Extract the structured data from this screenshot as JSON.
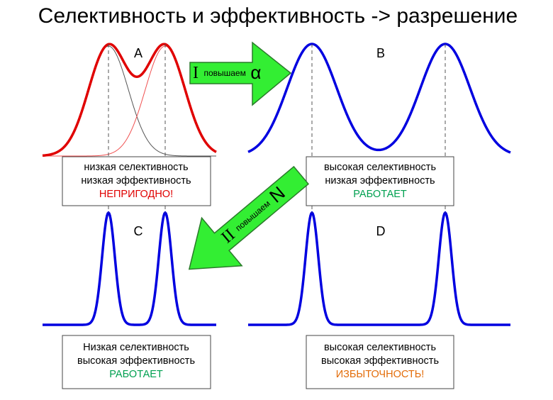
{
  "title": "Селективность и эффективность -> разрешение",
  "panels": [
    {
      "label": "A",
      "box": [
        "низкая селективность",
        "низкая эффективность",
        "НЕПРИГОДНО!"
      ]
    },
    {
      "label": "B",
      "box": [
        "высокая селективность",
        "низкая эффективность",
        "РАБОТАЕТ"
      ]
    },
    {
      "label": "C",
      "box": [
        "Низкая селективность",
        "высокая эффективность",
        "РАБОТАЕТ"
      ]
    },
    {
      "label": "D",
      "box": [
        "высокая селективность",
        "высокая эффективность",
        "ИЗБЫТОЧНОСТЬ!"
      ]
    }
  ],
  "arrows": [
    {
      "numeral": "I",
      "text": "повышаем",
      "symbol": "α"
    },
    {
      "numeral": "II",
      "text": "повышаем",
      "symbol": "N"
    }
  ]
}
